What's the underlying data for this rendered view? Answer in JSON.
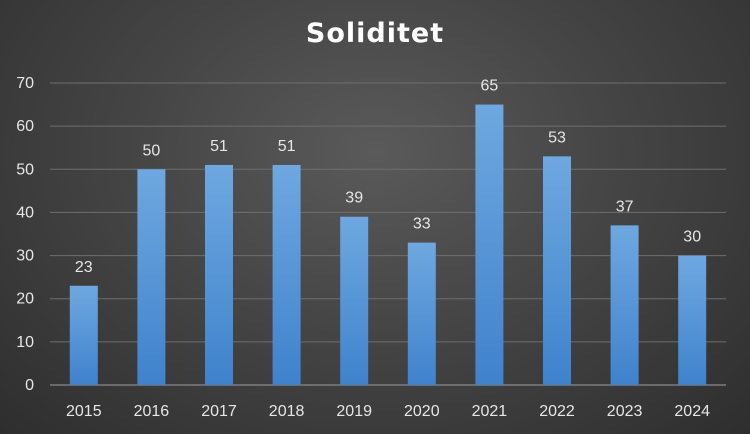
{
  "chart_data": {
    "type": "bar",
    "title": "Soliditet",
    "xlabel": "",
    "ylabel": "",
    "categories": [
      "2015",
      "2016",
      "2017",
      "2018",
      "2019",
      "2020",
      "2021",
      "2022",
      "2023",
      "2024"
    ],
    "values": [
      23,
      50,
      51,
      51,
      39,
      33,
      65,
      53,
      37,
      30
    ],
    "data_labels": [
      "23",
      "50",
      "51",
      "51",
      "39",
      "33",
      "65",
      "53",
      "37",
      "30"
    ],
    "ylim": [
      0,
      70
    ],
    "yticks": [
      0,
      10,
      20,
      30,
      40,
      50,
      60,
      70
    ],
    "ytick_labels": [
      "0",
      "10",
      "20",
      "30",
      "40",
      "50",
      "60",
      "70"
    ],
    "grid": true,
    "legend": "none",
    "colors": {
      "bar_top": "#6fa8e0",
      "bar_bottom": "#3f82cc",
      "background": "#454545",
      "text": "#e6e6e6"
    }
  }
}
